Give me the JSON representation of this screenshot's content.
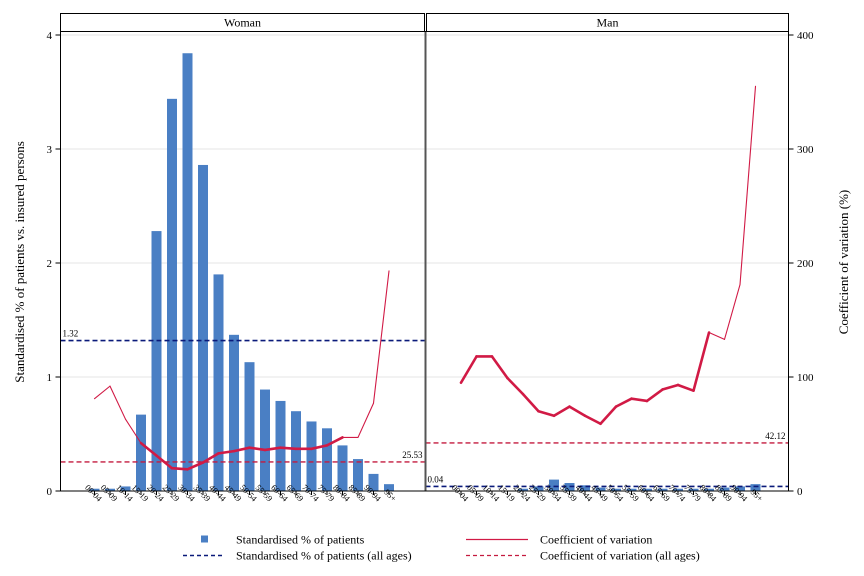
{
  "chart_data": {
    "type": "bar",
    "ylabel_left": "Standardised % of patients vs. insured persons",
    "ylabel_right": "Coefficient of variation (%)",
    "ylim_left": [
      0,
      4
    ],
    "ylim_right": [
      0,
      400
    ],
    "yticks_left": [
      "0",
      "1",
      "2",
      "3",
      "4"
    ],
    "yticks_right": [
      "0",
      "100",
      "200",
      "300",
      "400"
    ],
    "categories": [
      "00-04",
      "05-09",
      "10-14",
      "15-19",
      "20-24",
      "25-29",
      "30-34",
      "35-39",
      "40-44",
      "45-49",
      "50-54",
      "55-59",
      "60-64",
      "65-69",
      "70-74",
      "75-79",
      "80-84",
      "85-89",
      "90-94",
      "95+"
    ],
    "panels": [
      {
        "title": "Woman",
        "bars": [
          0.02,
          0.02,
          0.04,
          0.67,
          2.28,
          3.44,
          3.84,
          2.86,
          1.9,
          1.37,
          1.13,
          0.89,
          0.79,
          0.7,
          0.61,
          0.55,
          0.4,
          0.28,
          0.15,
          0.06
        ],
        "cv": [
          81,
          92,
          63,
          42,
          31,
          20,
          19,
          25,
          33,
          35,
          38,
          36,
          38,
          37,
          37,
          40,
          47,
          47,
          77,
          193
        ],
        "ref_bar": 1.32,
        "ref_bar_label": "1.32",
        "ref_cv": 25.53,
        "ref_cv_label": "25.53"
      },
      {
        "title": "Man",
        "bars": [
          0.0,
          0.0,
          0.0,
          0.0,
          0.02,
          0.04,
          0.1,
          0.07,
          0.05,
          0.03,
          0.02,
          0.02,
          0.02,
          0.02,
          0.02,
          0.02,
          0.02,
          0.03,
          0.04,
          0.06
        ],
        "cv": [
          95,
          118,
          118,
          99,
          85,
          70,
          66,
          74,
          66,
          59,
          74,
          81,
          79,
          89,
          93,
          88,
          139,
          133,
          181,
          355
        ],
        "ref_bar": 0.04,
        "ref_bar_label": "0.04",
        "ref_cv": 42.12,
        "ref_cv_label": "42.12"
      }
    ],
    "legend": {
      "position": "bottom",
      "items": [
        "Standardised % of patients",
        "Coefficient of variation",
        "Standardised % of patients (all ages)",
        "Coefficient of variation (all ages)"
      ]
    },
    "colors": {
      "bar": "#4a7fc4",
      "cv": "#d11a45",
      "ref_bar": "#0a1a7a",
      "ref_cv": "#c41a3f"
    },
    "grid": true
  }
}
